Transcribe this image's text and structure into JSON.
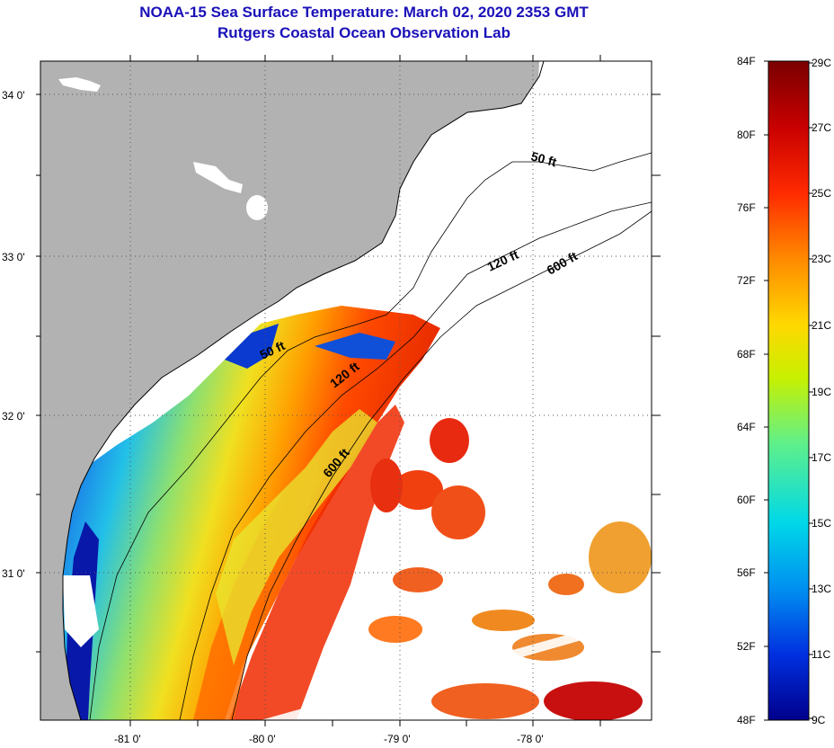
{
  "header": {
    "title": "NOAA-15 Sea Surface Temperature:  March 02, 2020 2353 GMT",
    "subtitle": "Rutgers Coastal Ocean Observation Lab"
  },
  "map": {
    "lat_labels": [
      "34 0'",
      "33 0'",
      "32 0'",
      "31 0'"
    ],
    "lon_labels": [
      "-81 0'",
      "-80 0'",
      "-79 0'",
      "-78 0'"
    ],
    "contours": [
      "50 ft",
      "120 ft",
      "600 ft",
      "50 ft",
      "120 ft",
      "600 ft"
    ]
  },
  "colorbar": {
    "fahrenheit_labels": [
      "84F",
      "80F",
      "76F",
      "72F",
      "68F",
      "64F",
      "60F",
      "56F",
      "52F",
      "48F"
    ],
    "celsius_labels": [
      "29C",
      "27C",
      "25C",
      "23C",
      "21C",
      "19C",
      "17C",
      "15C",
      "13C",
      "11C",
      "9C"
    ],
    "colors": [
      "#7a0000",
      "#c80000",
      "#ff2a00",
      "#ff8a00",
      "#ffd800",
      "#c8f000",
      "#5ff08a",
      "#00d8e8",
      "#0090f0",
      "#0030e0",
      "#00008c"
    ]
  }
}
